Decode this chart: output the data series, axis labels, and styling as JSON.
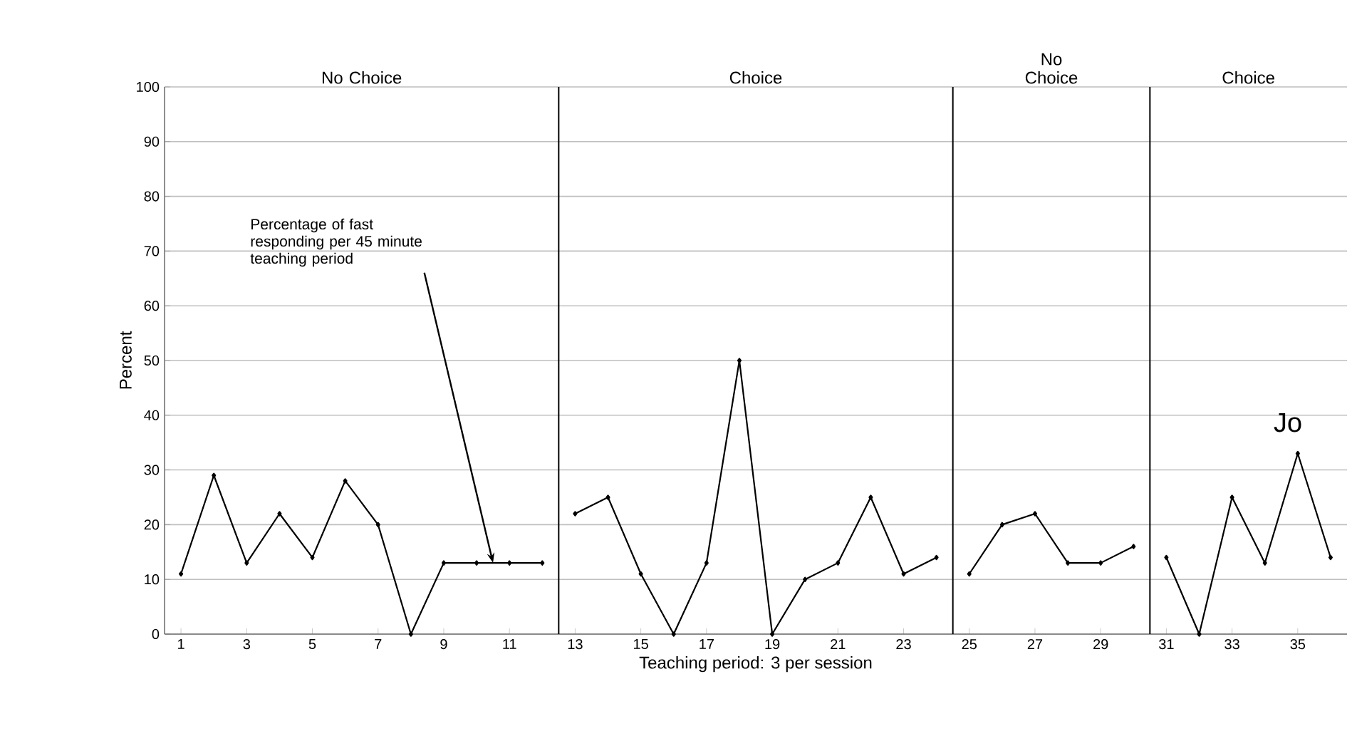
{
  "chart_data": {
    "type": "line",
    "xlabel": "Teaching period:  3 per session",
    "ylabel": "Percent",
    "series": [
      {
        "color": "#000000",
        "x": [
          1,
          2,
          3,
          4,
          5,
          6,
          7,
          8,
          9,
          10,
          11,
          12
        ],
        "values": [
          11,
          29,
          13,
          22,
          14,
          28,
          20,
          0,
          13,
          13,
          13,
          13
        ]
      },
      {
        "color": "#000000",
        "x": [
          13,
          14,
          15,
          16,
          17,
          18,
          19,
          20,
          21,
          22,
          23,
          24
        ],
        "values": [
          22,
          25,
          11,
          0,
          13,
          50,
          0,
          10,
          13,
          25,
          11,
          14
        ]
      },
      {
        "color": "#000000",
        "x": [
          25,
          26,
          27,
          28,
          29,
          30
        ],
        "values": [
          11,
          20,
          22,
          13,
          13,
          16
        ]
      },
      {
        "color": "#000000",
        "x": [
          31,
          32,
          33,
          34,
          35,
          36
        ],
        "values": [
          14,
          0,
          25,
          13,
          33,
          14
        ]
      }
    ],
    "xlim": [
      0.5,
      36.5
    ],
    "xticks": [
      1,
      3,
      5,
      7,
      9,
      11,
      13,
      15,
      17,
      19,
      21,
      23,
      25,
      27,
      29,
      31,
      33,
      35
    ],
    "ylim": [
      0,
      100
    ],
    "yticks": [
      0,
      10,
      20,
      30,
      40,
      50,
      60,
      70,
      80,
      90,
      100
    ],
    "grid": "y",
    "marker": "diamond",
    "line_style": "solid",
    "ref_lines": [
      {
        "axis": "x",
        "value": 12.5,
        "color": "#000000"
      },
      {
        "axis": "x",
        "value": 24.5,
        "color": "#000000"
      },
      {
        "axis": "x",
        "value": 30.5,
        "color": "#000000"
      }
    ],
    "annotations": [
      "No Choice",
      "Choice",
      "No Choice",
      "Choice",
      {
        "text": "Percentage of fast responding per 45 minute teaching period",
        "x": 10.5,
        "y": 13
      },
      "Jo"
    ]
  }
}
